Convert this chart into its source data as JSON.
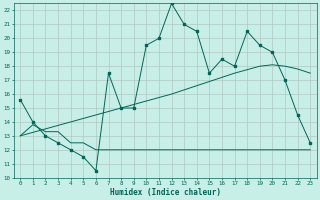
{
  "xlabel": "Humidex (Indice chaleur)",
  "bg_color": "#c8eee8",
  "line_color": "#006655",
  "grid_color": "#b0c8c4",
  "xlim": [
    -0.5,
    23.5
  ],
  "ylim": [
    10,
    22.5
  ],
  "xticks": [
    0,
    1,
    2,
    3,
    4,
    5,
    6,
    7,
    8,
    9,
    10,
    11,
    12,
    13,
    14,
    15,
    16,
    17,
    18,
    19,
    20,
    21,
    22,
    23
  ],
  "yticks": [
    10,
    11,
    12,
    13,
    14,
    15,
    16,
    17,
    18,
    19,
    20,
    21,
    22
  ],
  "line1_x": [
    0,
    1,
    2,
    3,
    4,
    5,
    6,
    7,
    8,
    9,
    10,
    11,
    12,
    13,
    14,
    15,
    16,
    17,
    18,
    19,
    20,
    21,
    22,
    23
  ],
  "line1_y": [
    15.6,
    14.0,
    13.0,
    12.5,
    12.0,
    11.5,
    10.5,
    17.5,
    15.0,
    15.0,
    19.5,
    20.0,
    22.5,
    21.0,
    20.5,
    17.5,
    18.5,
    18.0,
    20.5,
    19.5,
    19.0,
    17.0,
    14.5,
    12.5
  ],
  "line2_x": [
    0,
    1,
    2,
    3,
    4,
    5,
    6,
    7,
    8,
    9,
    10,
    11,
    12,
    13,
    14,
    15,
    16,
    17,
    18,
    19,
    20,
    21,
    22,
    23
  ],
  "line2_y": [
    13.0,
    13.8,
    13.3,
    13.3,
    12.5,
    12.5,
    12.0,
    12.0,
    12.0,
    12.0,
    12.0,
    12.0,
    12.0,
    12.0,
    12.0,
    12.0,
    12.0,
    12.0,
    12.0,
    12.0,
    12.0,
    12.0,
    12.0,
    12.0
  ],
  "line3_x": [
    0,
    1,
    2,
    3,
    4,
    5,
    6,
    7,
    8,
    9,
    10,
    11,
    12,
    13,
    14,
    15,
    16,
    17,
    18,
    19,
    20,
    21,
    22,
    23
  ],
  "line3_y": [
    13.0,
    13.25,
    13.5,
    13.75,
    14.0,
    14.25,
    14.5,
    14.75,
    15.0,
    15.25,
    15.5,
    15.75,
    16.0,
    16.3,
    16.6,
    16.9,
    17.2,
    17.5,
    17.75,
    18.0,
    18.1,
    18.0,
    17.8,
    17.5
  ]
}
